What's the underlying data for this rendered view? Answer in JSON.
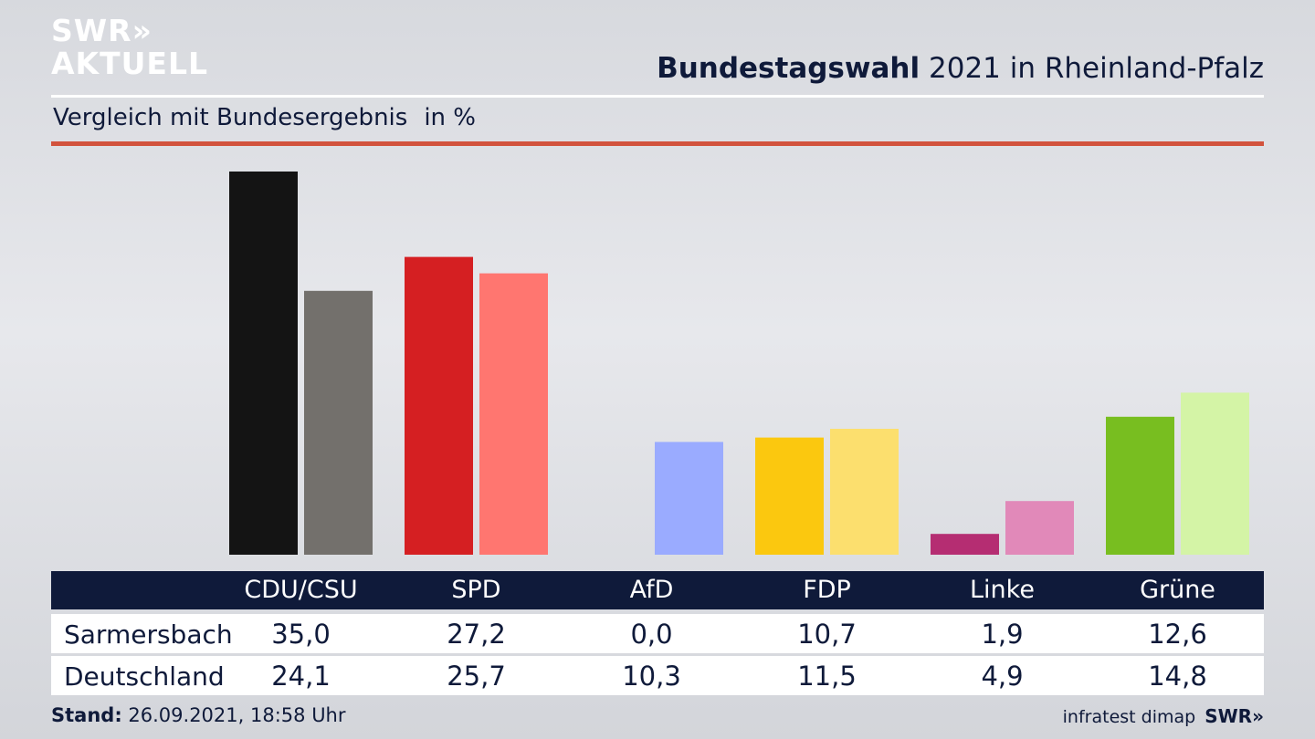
{
  "logo": {
    "line1": "SWR»",
    "line2": "AKTUELL"
  },
  "header": {
    "title_bold": "Bundestagswahl",
    "title_rest": "2021 in Rheinland-Pfalz",
    "subtitle": "Vergleich mit Bundesergebnis",
    "unit": "in %"
  },
  "colors": {
    "navy": "#0f1a3a",
    "red_rule": "#d2533d"
  },
  "chart_data": {
    "type": "bar",
    "categories": [
      "CDU/CSU",
      "SPD",
      "AfD",
      "FDP",
      "Linke",
      "Grüne"
    ],
    "series": [
      {
        "name": "Sarmersbach",
        "values": [
          35.0,
          27.2,
          0.0,
          10.7,
          1.9,
          12.6
        ],
        "display": [
          "35,0",
          "27,2",
          "0,0",
          "10,7",
          "1,9",
          "12,6"
        ],
        "colors": [
          "#141414",
          "#d51f22",
          "#3a6fdc",
          "#fbc80f",
          "#b52d72",
          "#78be20"
        ]
      },
      {
        "name": "Deutschland",
        "values": [
          24.1,
          25.7,
          10.3,
          11.5,
          4.9,
          14.8
        ],
        "display": [
          "24,1",
          "25,7",
          "10,3",
          "11,5",
          "4,9",
          "14,8"
        ],
        "colors": [
          "#73706c",
          "#ff7670",
          "#9aabff",
          "#fcdf6e",
          "#e189b9",
          "#d4f4a6"
        ]
      }
    ],
    "ylim": [
      0,
      35.0
    ]
  },
  "footer": {
    "stand_label": "Stand:",
    "stand_value": "26.09.2021, 18:58 Uhr",
    "source": "infratest dimap",
    "brand": "SWR»"
  }
}
